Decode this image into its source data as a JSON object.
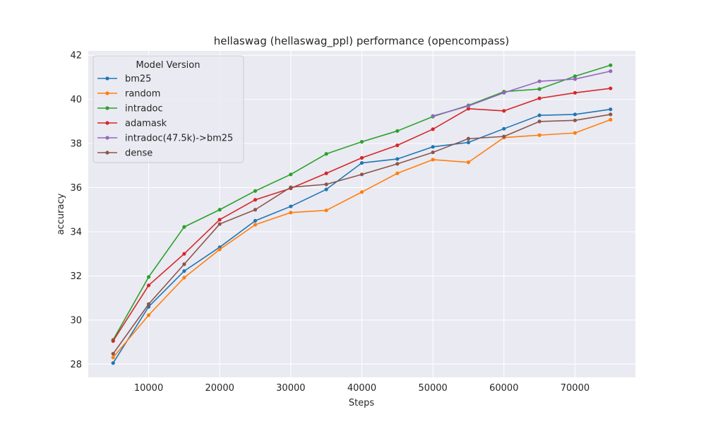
{
  "chart_data": {
    "type": "line",
    "title": "hellaswag (hellaswag_ppl) performance (opencompass)",
    "xlabel": "Steps",
    "ylabel": "accuracy",
    "xlim": [
      1500,
      78500
    ],
    "ylim": [
      27.4,
      42.2
    ],
    "xticks": [
      10000,
      20000,
      30000,
      40000,
      50000,
      60000,
      70000
    ],
    "yticks": [
      28,
      30,
      32,
      34,
      36,
      38,
      40,
      42
    ],
    "grid": true,
    "legend": {
      "title": "Model Version",
      "placement": "top-left"
    },
    "series": [
      {
        "name": "bm25",
        "color": "#1f77b4",
        "x": [
          5000,
          10000,
          15000,
          20000,
          25000,
          30000,
          35000,
          40000,
          45000,
          50000,
          55000,
          60000,
          65000,
          70000,
          75000
        ],
        "y": [
          28.05,
          30.6,
          32.22,
          33.3,
          34.5,
          35.15,
          35.92,
          37.12,
          37.3,
          37.85,
          38.05,
          38.67,
          39.28,
          39.32,
          39.55
        ]
      },
      {
        "name": "random",
        "color": "#ff7f0e",
        "x": [
          5000,
          10000,
          15000,
          20000,
          25000,
          30000,
          35000,
          40000,
          45000,
          50000,
          55000,
          60000,
          65000,
          70000,
          75000
        ],
        "y": [
          28.3,
          30.22,
          31.92,
          33.2,
          34.32,
          34.87,
          34.97,
          35.8,
          36.65,
          37.27,
          37.15,
          38.27,
          38.38,
          38.48,
          39.08
        ]
      },
      {
        "name": "intradoc",
        "color": "#2ca02c",
        "x": [
          5000,
          10000,
          15000,
          20000,
          25000,
          30000,
          35000,
          40000,
          45000,
          50000,
          55000,
          60000,
          65000,
          70000,
          75000
        ],
        "y": [
          29.1,
          31.95,
          34.22,
          35.0,
          35.85,
          36.6,
          37.53,
          38.08,
          38.57,
          39.22,
          39.73,
          40.35,
          40.47,
          41.05,
          41.55
        ]
      },
      {
        "name": "adamask",
        "color": "#d62728",
        "x": [
          5000,
          10000,
          15000,
          20000,
          25000,
          30000,
          35000,
          40000,
          45000,
          50000,
          55000,
          60000,
          65000,
          70000,
          75000
        ],
        "y": [
          29.05,
          31.57,
          33.0,
          34.55,
          35.45,
          35.97,
          36.65,
          37.35,
          37.92,
          38.65,
          39.58,
          39.48,
          40.05,
          40.3,
          40.5
        ]
      },
      {
        "name": "intradoc(47.5k)->bm25",
        "color": "#9467bd",
        "x": [
          50000,
          55000,
          60000,
          65000,
          70000,
          75000
        ],
        "y": [
          39.25,
          39.7,
          40.3,
          40.82,
          40.92,
          41.28
        ]
      },
      {
        "name": "dense",
        "color": "#8c564b",
        "x": [
          5000,
          10000,
          15000,
          20000,
          25000,
          30000,
          35000,
          40000,
          45000,
          50000,
          55000,
          60000,
          65000,
          70000,
          75000
        ],
        "y": [
          28.47,
          30.72,
          32.53,
          34.35,
          35.0,
          36.02,
          36.15,
          36.6,
          37.08,
          37.6,
          38.22,
          38.32,
          39.0,
          39.05,
          39.32
        ]
      }
    ]
  }
}
